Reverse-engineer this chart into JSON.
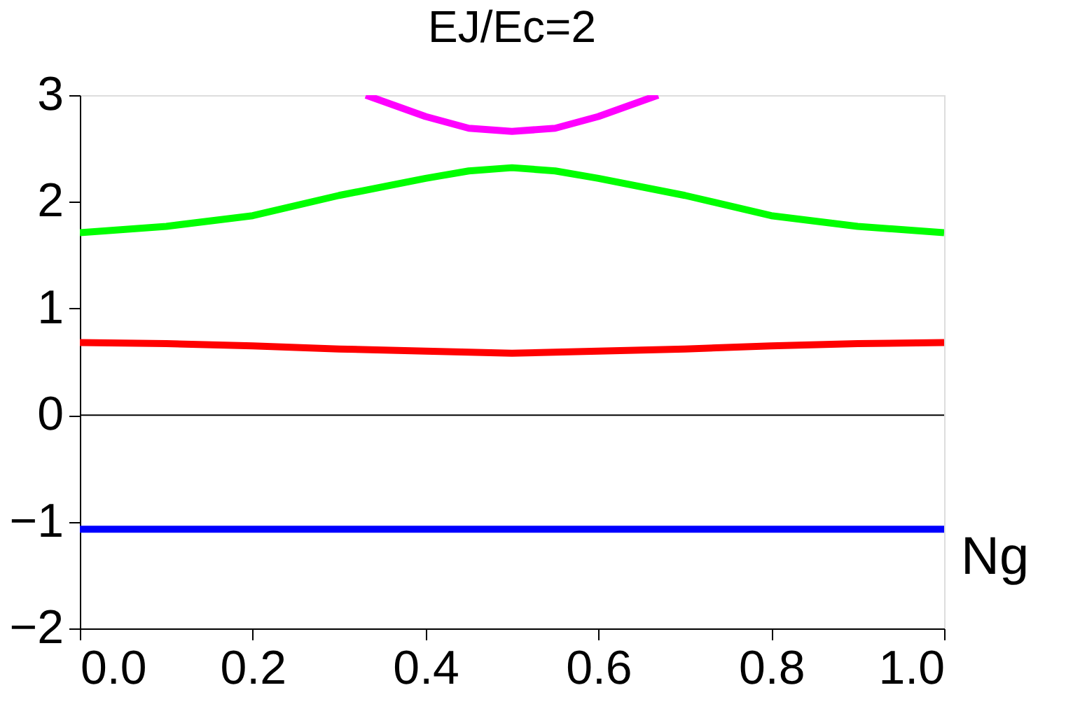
{
  "chart_data": {
    "type": "line",
    "title": "EJ/Ec=2",
    "xlabel": "Ng",
    "x": [
      0,
      0.1,
      0.2,
      0.3,
      0.4,
      0.45,
      0.5,
      0.55,
      0.6,
      0.7,
      0.8,
      0.9,
      1.0
    ],
    "series": [
      {
        "color": "#0000ff",
        "values": [
          -1.07,
          -1.07,
          -1.07,
          -1.07,
          -1.07,
          -1.07,
          -1.07,
          -1.07,
          -1.07,
          -1.07,
          -1.07,
          -1.07,
          -1.07
        ]
      },
      {
        "color": "#ff0000",
        "values": [
          0.68,
          0.67,
          0.65,
          0.62,
          0.6,
          0.59,
          0.58,
          0.59,
          0.6,
          0.62,
          0.65,
          0.67,
          0.68
        ]
      },
      {
        "color": "#00ff00",
        "values": [
          1.71,
          1.77,
          1.87,
          2.06,
          2.22,
          2.29,
          2.32,
          2.29,
          2.22,
          2.06,
          1.87,
          1.77,
          1.71
        ]
      },
      {
        "color": "#ff00ff",
        "x": [
          0.331,
          0.4,
          0.45,
          0.5,
          0.55,
          0.6,
          0.669
        ],
        "values": [
          3.0,
          2.8,
          2.69,
          2.66,
          2.69,
          2.8,
          3.0
        ]
      }
    ],
    "xlim": [
      0,
      1
    ],
    "xticks": [
      {
        "value": 0,
        "label": "0.0"
      },
      0.2,
      0.4,
      0.6,
      0.8,
      {
        "value": 1,
        "label": "1.0"
      }
    ],
    "ylim": [
      -2,
      3
    ],
    "yticks": [
      {
        "value": -2,
        "label": "−2"
      },
      {
        "value": -1,
        "label": "−1"
      },
      0,
      1,
      2,
      3
    ],
    "ref_lines": [
      {
        "axis": "y",
        "value": 0,
        "color": "#000000"
      }
    ],
    "grid": false,
    "marker": "none",
    "line_style": "solid"
  }
}
